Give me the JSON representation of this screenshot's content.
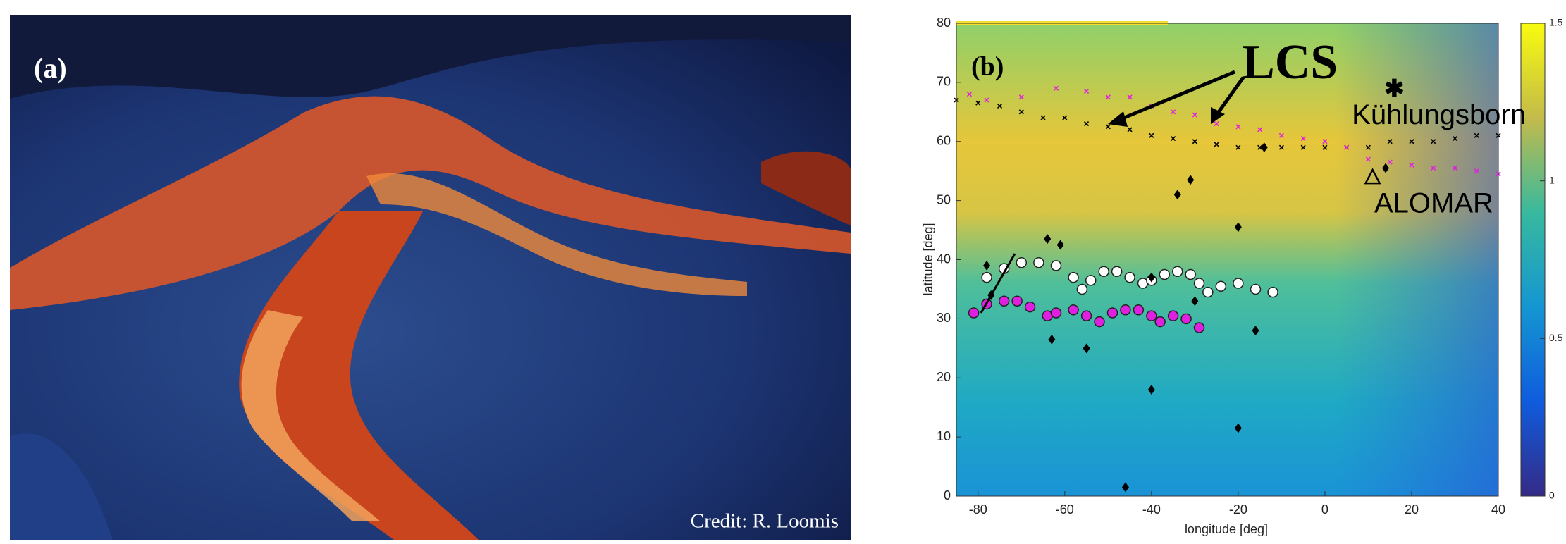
{
  "panel_a": {
    "label": "(a)",
    "credit": "Credit: R. Loomis"
  },
  "chart_data": {
    "type": "scatter",
    "panel_label": "(b)",
    "xlabel": "longitude [deg]",
    "ylabel": "latitude [deg]",
    "xlim": [
      -85,
      40
    ],
    "ylim": [
      0,
      80
    ],
    "xticks": [
      -80,
      -60,
      -40,
      -20,
      0,
      20,
      40
    ],
    "yticks": [
      0,
      10,
      20,
      30,
      40,
      50,
      60,
      70,
      80
    ],
    "colorbar": {
      "clim": [
        0,
        1.5
      ],
      "ticks": [
        0,
        0.5,
        1,
        1.5
      ]
    },
    "series": [
      {
        "marker": "x",
        "color": "#000000",
        "x": [
          -85,
          -80,
          -75,
          -70,
          -65,
          -60,
          -55,
          -50,
          -45,
          -40,
          -35,
          -30,
          -25,
          -20,
          -15,
          -10,
          -5,
          0,
          5,
          10,
          15,
          20,
          25,
          30,
          35,
          40
        ],
        "values": [
          67,
          66.5,
          66,
          65,
          64,
          64,
          63,
          62.5,
          62,
          61,
          60.5,
          60,
          59.5,
          59,
          59,
          59,
          59,
          59,
          59,
          59,
          60,
          60,
          60,
          60.5,
          61,
          61
        ]
      },
      {
        "marker": "x",
        "color": "#e020e0",
        "x": [
          -82,
          -78,
          -70,
          -62,
          -55,
          -50,
          -45,
          -40,
          -35,
          -30,
          -25,
          -20,
          -15,
          -10,
          -5,
          0,
          5,
          10,
          15,
          20,
          25,
          30,
          35,
          40
        ],
        "values": [
          68,
          67,
          67.5,
          69,
          68.5,
          67.5,
          67.5,
          66,
          65,
          64.5,
          63,
          62.5,
          62,
          61,
          60.5,
          60,
          59,
          57,
          56.5,
          56,
          55.5,
          55.5,
          55,
          54.5
        ]
      },
      {
        "marker": "circle",
        "color": "#ffffff",
        "x": [
          -78,
          -74,
          -70,
          -66,
          -62,
          -58,
          -56,
          -54,
          -51,
          -48,
          -45,
          -42,
          -40,
          -37,
          -34,
          -31,
          -29,
          -27,
          -24,
          -20,
          -16,
          -12
        ],
        "values": [
          37,
          38.5,
          39.5,
          39.5,
          39,
          37,
          35,
          36.5,
          38,
          38,
          37,
          36,
          36.5,
          37.5,
          38,
          37.5,
          36,
          34.5,
          35.5,
          36,
          35,
          34.5
        ]
      },
      {
        "marker": "circle",
        "color": "#e020e0",
        "x": [
          -81,
          -78,
          -74,
          -71,
          -68,
          -64,
          -62,
          -58,
          -55,
          -52,
          -49,
          -46,
          -43,
          -40,
          -38,
          -35,
          -32,
          -29
        ],
        "values": [
          31,
          32.5,
          33,
          33,
          32,
          30.5,
          31,
          31.5,
          30.5,
          29.5,
          31,
          31.5,
          31.5,
          30.5,
          29.5,
          30.5,
          30,
          28.5
        ]
      },
      {
        "marker": "diamond",
        "color": "#000000",
        "x": [
          -78,
          -77,
          -64,
          -61,
          -63,
          -55,
          -40,
          -34,
          -31,
          -30,
          -40,
          -20,
          -16,
          -20,
          -46,
          -14,
          14
        ],
        "values": [
          39,
          34,
          43.5,
          42.5,
          26.5,
          25,
          37,
          51,
          53.5,
          33,
          18,
          45.5,
          28,
          11.5,
          1.5,
          59,
          55.5
        ]
      }
    ],
    "annotations": [
      {
        "text": "LCS"
      },
      {
        "text": "Kühlungsborn",
        "x": 16,
        "y": 69
      },
      {
        "text": "ALOMAR",
        "x": 11,
        "y": 54
      }
    ]
  }
}
